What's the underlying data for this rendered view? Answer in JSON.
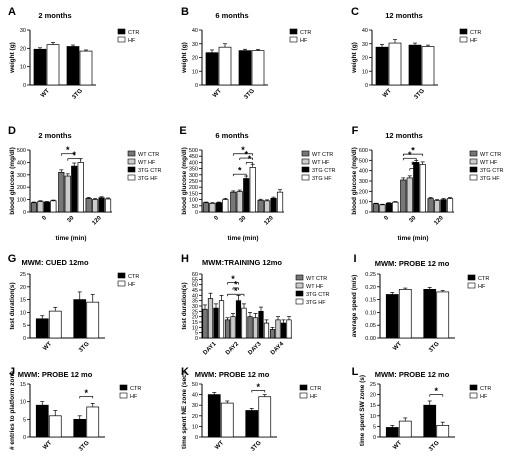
{
  "chart_data": [
    {
      "panel_letter": "A",
      "type": "bar",
      "title": "2 months",
      "ylabel": "weight (g)",
      "xlabel": "",
      "categories": [
        "WT",
        "3TG"
      ],
      "ylim": [
        0,
        30
      ],
      "yticks": [
        0,
        10,
        20,
        30
      ],
      "series": [
        {
          "name": "CTR",
          "values": [
            19.5,
            21
          ],
          "errors": [
            0.8,
            0.8
          ]
        },
        {
          "name": "HF",
          "values": [
            22,
            18.5
          ],
          "errors": [
            1.2,
            0.6
          ]
        }
      ],
      "legend": "right",
      "annotations": []
    },
    {
      "panel_letter": "B",
      "type": "bar",
      "title": "6 months",
      "ylabel": "weight (g)",
      "xlabel": "",
      "categories": [
        "WT",
        "3TG"
      ],
      "ylim": [
        0,
        40
      ],
      "yticks": [
        0,
        10,
        20,
        30,
        40
      ],
      "series": [
        {
          "name": "CTR",
          "values": [
            23.5,
            25
          ],
          "errors": [
            2,
            1
          ]
        },
        {
          "name": "HF",
          "values": [
            27.5,
            25
          ],
          "errors": [
            2.5,
            0.8
          ]
        }
      ],
      "legend": "right",
      "annotations": []
    },
    {
      "panel_letter": "C",
      "type": "bar",
      "title": "12 months",
      "ylabel": "weight (g)",
      "xlabel": "",
      "categories": [
        "WT",
        "3TG"
      ],
      "ylim": [
        0,
        40
      ],
      "yticks": [
        0,
        10,
        20,
        30,
        40
      ],
      "series": [
        {
          "name": "CTR",
          "values": [
            27.5,
            29
          ],
          "errors": [
            2,
            1.5
          ]
        },
        {
          "name": "HF",
          "values": [
            30.5,
            28
          ],
          "errors": [
            2.5,
            1
          ]
        }
      ],
      "legend": "right",
      "annotations": []
    },
    {
      "panel_letter": "D",
      "type": "bar",
      "title": "2 months",
      "ylabel": "blood glucose (mg/dl)",
      "xlabel": "time (min)",
      "categories": [
        "0",
        "30",
        "120"
      ],
      "ylim": [
        0,
        500
      ],
      "yticks": [
        0,
        100,
        200,
        300,
        400,
        500
      ],
      "series": [
        {
          "name": "WT CTR",
          "values": [
            75,
            320,
            110
          ],
          "errors": [
            5,
            20,
            8
          ]
        },
        {
          "name": "WT HF",
          "values": [
            85,
            290,
            100
          ],
          "errors": [
            6,
            18,
            8
          ]
        },
        {
          "name": "3TG CTR",
          "values": [
            80,
            370,
            115
          ],
          "errors": [
            5,
            25,
            8
          ]
        },
        {
          "name": "3TG HF",
          "values": [
            90,
            400,
            105
          ],
          "errors": [
            6,
            30,
            8
          ]
        }
      ],
      "legend": "right",
      "annotations": [
        {
          "text": "*",
          "from_series": 0,
          "to_series": 2,
          "at": 1,
          "y": 470
        },
        {
          "text": "*",
          "from_series": 1,
          "to_series": 3,
          "at": 1,
          "y": 430
        }
      ]
    },
    {
      "panel_letter": "E",
      "type": "bar",
      "title": "6 months",
      "ylabel": "blood glucose (mg/dl)",
      "xlabel": "time (min)",
      "categories": [
        "0",
        "30",
        "120"
      ],
      "ylim": [
        0,
        500
      ],
      "yticks": [
        0,
        50,
        100,
        150,
        200,
        250,
        300,
        350,
        400,
        450,
        500
      ],
      "series": [
        {
          "name": "WT CTR",
          "values": [
            75,
            160,
            95
          ],
          "errors": [
            5,
            10,
            8
          ]
        },
        {
          "name": "WT HF",
          "values": [
            70,
            165,
            90
          ],
          "errors": [
            5,
            12,
            8
          ]
        },
        {
          "name": "3TG CTR",
          "values": [
            75,
            270,
            110
          ],
          "errors": [
            5,
            20,
            10
          ]
        },
        {
          "name": "3TG HF",
          "values": [
            100,
            360,
            160
          ],
          "errors": [
            10,
            25,
            20
          ]
        }
      ],
      "legend": "right",
      "annotations": [
        {
          "text": "*",
          "from_series": 0,
          "to_series": 3,
          "at": 1,
          "y": 470
        },
        {
          "text": "*",
          "from_series": 1,
          "to_series": 3,
          "at": 1,
          "y": 435
        },
        {
          "text": "*",
          "from_series": 2,
          "to_series": 3,
          "at": 1,
          "y": 400
        },
        {
          "text": "*",
          "from_series": 0,
          "to_series": 2,
          "at": 1,
          "y": 305
        }
      ]
    },
    {
      "panel_letter": "F",
      "type": "bar",
      "title": "12 months",
      "ylabel": "blood glucose (mg/dl)",
      "xlabel": "time (min)",
      "categories": [
        "0",
        "30",
        "120"
      ],
      "ylim": [
        0,
        600
      ],
      "yticks": [
        0,
        100,
        200,
        300,
        400,
        500,
        600
      ],
      "series": [
        {
          "name": "WT CTR",
          "values": [
            80,
            310,
            130
          ],
          "errors": [
            5,
            20,
            10
          ]
        },
        {
          "name": "WT HF",
          "values": [
            70,
            330,
            110
          ],
          "errors": [
            5,
            20,
            10
          ]
        },
        {
          "name": "3TG CTR",
          "values": [
            85,
            480,
            120
          ],
          "errors": [
            5,
            20,
            10
          ]
        },
        {
          "name": "3TG HF",
          "values": [
            95,
            460,
            130
          ],
          "errors": [
            6,
            25,
            10
          ]
        }
      ],
      "legend": "right",
      "annotations": [
        {
          "text": "*",
          "from_series": 0,
          "to_series": 3,
          "at": 1,
          "y": 560
        },
        {
          "text": "*",
          "from_series": 0,
          "to_series": 2,
          "at": 1,
          "y": 520
        },
        {
          "text": "*",
          "from_series": 1,
          "to_series": 2,
          "at": 1,
          "y": 420
        }
      ]
    },
    {
      "panel_letter": "G",
      "type": "bar",
      "title": "MWM: CUED 12mo",
      "ylabel": "test duration(s)",
      "xlabel": "",
      "categories": [
        "WT",
        "3TG"
      ],
      "ylim": [
        0,
        25
      ],
      "yticks": [
        0,
        5,
        10,
        15,
        20,
        25
      ],
      "series": [
        {
          "name": "CTR",
          "values": [
            7.5,
            15
          ],
          "errors": [
            1.2,
            3
          ]
        },
        {
          "name": "HF",
          "values": [
            10.5,
            14
          ],
          "errors": [
            1.5,
            3
          ]
        }
      ],
      "legend": "right",
      "annotations": []
    },
    {
      "panel_letter": "H",
      "type": "bar",
      "title": "MWM:TRAINING 12mo",
      "ylabel": "test duration(s)",
      "xlabel": "",
      "categories": [
        "DAY1",
        "DAY2",
        "DAY3",
        "DAY4"
      ],
      "ylim": [
        0,
        60
      ],
      "yticks": [
        0,
        5,
        10,
        15,
        20,
        25,
        30,
        35,
        40,
        45,
        50,
        55,
        60
      ],
      "series": [
        {
          "name": "WT CTR",
          "values": [
            27,
            17,
            20,
            8
          ],
          "errors": [
            4,
            2,
            4,
            2
          ]
        },
        {
          "name": "WT HF",
          "values": [
            37,
            20,
            19,
            17
          ],
          "errors": [
            5,
            3,
            4,
            3
          ]
        },
        {
          "name": "3TG CTR",
          "values": [
            28,
            35,
            25,
            14
          ],
          "errors": [
            4,
            5,
            4,
            3
          ]
        },
        {
          "name": "3TG HF",
          "values": [
            35,
            28,
            14,
            17
          ],
          "errors": [
            5,
            4,
            3,
            3
          ]
        }
      ],
      "legend": "right",
      "annotations": [
        {
          "text": "*",
          "from_series": 0,
          "to_series": 2,
          "at": 1,
          "y": 52
        },
        {
          "text": "*",
          "from_series": 1,
          "to_series": 2,
          "at": 1,
          "y": 47
        },
        {
          "text": "*",
          "from_series": 0,
          "to_series": 3,
          "at": 1,
          "y": 41
        }
      ]
    },
    {
      "panel_letter": "I",
      "type": "bar",
      "title": "MWM: PROBE 12 mo",
      "ylabel": "average speed (m/s)",
      "xlabel": "",
      "categories": [
        "WT",
        "3TG"
      ],
      "ylim": [
        0,
        0.25
      ],
      "yticks": [
        0.0,
        0.05,
        0.1,
        0.15,
        0.2,
        0.25
      ],
      "tick_decimals": 2,
      "series": [
        {
          "name": "CTR",
          "values": [
            0.17,
            0.19
          ],
          "errors": [
            0.008,
            0.008
          ]
        },
        {
          "name": "HF",
          "values": [
            0.19,
            0.18
          ],
          "errors": [
            0.005,
            0.005
          ]
        }
      ],
      "legend": "right",
      "annotations": []
    },
    {
      "panel_letter": "J",
      "type": "bar",
      "title": "MWM: PROBE 12 mo",
      "ylabel": "# entries to platform zone",
      "xlabel": "",
      "categories": [
        "WT",
        "3TG"
      ],
      "ylim": [
        0,
        15
      ],
      "yticks": [
        0,
        5,
        10,
        15
      ],
      "series": [
        {
          "name": "CTR",
          "values": [
            9,
            5
          ],
          "errors": [
            1,
            1
          ]
        },
        {
          "name": "HF",
          "values": [
            6,
            8.5
          ],
          "errors": [
            1.5,
            1
          ]
        }
      ],
      "legend": "right",
      "annotations": [
        {
          "text": "*",
          "from_cat": 1,
          "from_series": 0,
          "to_series": 1,
          "at": 1,
          "y": 11.5
        }
      ]
    },
    {
      "panel_letter": "K",
      "type": "bar",
      "title": "MWM: PROBE 12 mo",
      "ylabel": "time spent NE zone (sec)",
      "xlabel": "",
      "categories": [
        "WT",
        "3TG"
      ],
      "ylim": [
        0,
        50
      ],
      "yticks": [
        0,
        10,
        20,
        30,
        40,
        50
      ],
      "series": [
        {
          "name": "CTR",
          "values": [
            40,
            25
          ],
          "errors": [
            2,
            2
          ]
        },
        {
          "name": "HF",
          "values": [
            32,
            38
          ],
          "errors": [
            2,
            2
          ]
        }
      ],
      "legend": "right",
      "annotations": [
        {
          "text": "*",
          "from_series": 0,
          "to_series": 1,
          "at": 1,
          "y": 44
        }
      ]
    },
    {
      "panel_letter": "L",
      "type": "bar",
      "title": "MWM: PROBE 12 mo",
      "ylabel": "time spent SW zone (s)",
      "xlabel": "",
      "categories": [
        "WT",
        "3TG"
      ],
      "ylim": [
        0,
        25
      ],
      "yticks": [
        0,
        5,
        10,
        15,
        20,
        25
      ],
      "series": [
        {
          "name": "CTR",
          "values": [
            4.5,
            15
          ],
          "errors": [
            1,
            2
          ]
        },
        {
          "name": "HF",
          "values": [
            7.5,
            5.5
          ],
          "errors": [
            1.5,
            1.5
          ]
        }
      ],
      "legend": "right",
      "annotations": [
        {
          "text": "*",
          "from_series": 0,
          "to_series": 1,
          "at": 1,
          "y": 20
        }
      ]
    }
  ],
  "colors": {
    "CTR": "#000000",
    "HF": "#ffffff",
    "WT CTR": "#777777",
    "WT HF": "#cccccc",
    "3TG CTR": "#000000",
    "3TG HF": "#ffffff"
  }
}
